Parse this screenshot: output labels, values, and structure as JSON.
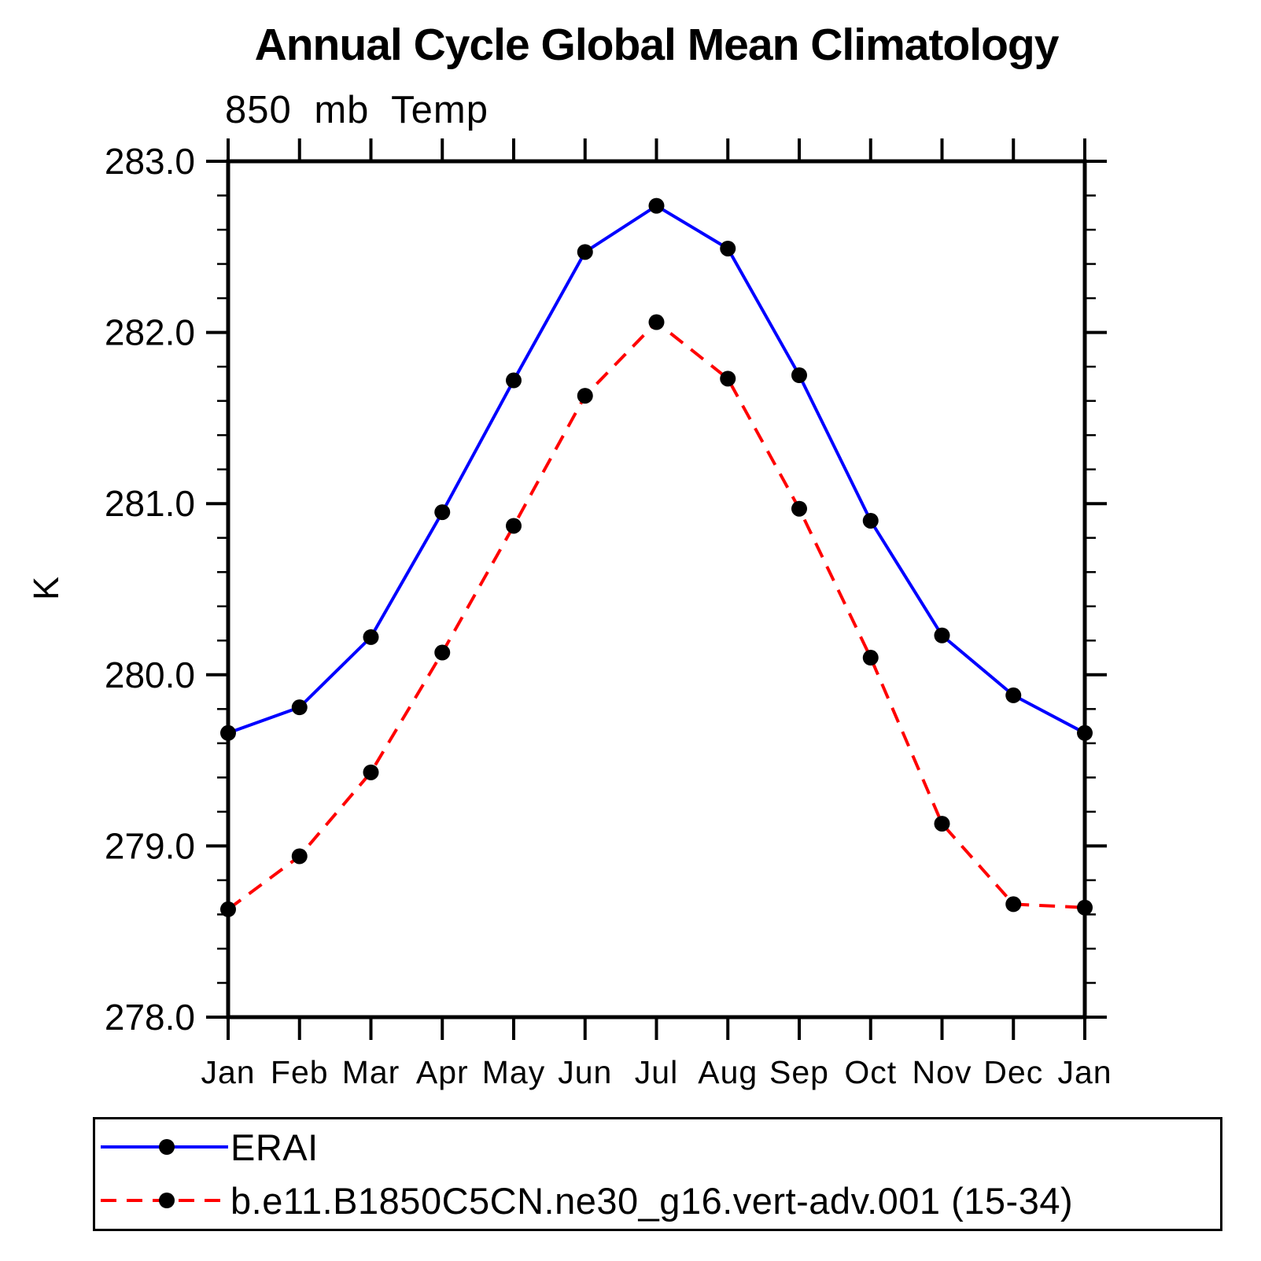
{
  "page": {
    "background": "#ffffff"
  },
  "chart_data": {
    "type": "line",
    "title": "Annual Cycle Global Mean Climatology",
    "subtitle": "850 mb Temp",
    "ylabel": "K",
    "categories": [
      "Jan",
      "Feb",
      "Mar",
      "Apr",
      "May",
      "Jun",
      "Jul",
      "Aug",
      "Sep",
      "Oct",
      "Nov",
      "Dec",
      "Jan"
    ],
    "ylim": [
      278.0,
      283.0
    ],
    "ytick_values": [
      278.0,
      279.0,
      280.0,
      281.0,
      282.0,
      283.0
    ],
    "ytick_labels": [
      "278.0",
      "279.0",
      "280.0",
      "281.0",
      "282.0",
      "283.0"
    ],
    "y_minor_step": 0.2,
    "grid": false,
    "legend_position": "bottom",
    "axis_color": "#000000",
    "marker_color": "#000000",
    "series": [
      {
        "name": "ERAI",
        "color": "#0000ff",
        "style": "solid",
        "marker": "circle",
        "values": [
          279.66,
          279.81,
          280.22,
          280.95,
          281.72,
          282.47,
          282.74,
          282.49,
          281.75,
          280.9,
          280.23,
          279.88,
          279.66
        ]
      },
      {
        "name": "b.e11.B1850C5CN.ne30_g16.vert-adv.001 (15-34)",
        "color": "#ff0000",
        "style": "dashed",
        "marker": "circle",
        "values": [
          278.63,
          278.94,
          279.43,
          280.13,
          280.87,
          281.63,
          282.06,
          281.73,
          280.97,
          280.1,
          279.13,
          278.66,
          278.64
        ]
      }
    ]
  }
}
